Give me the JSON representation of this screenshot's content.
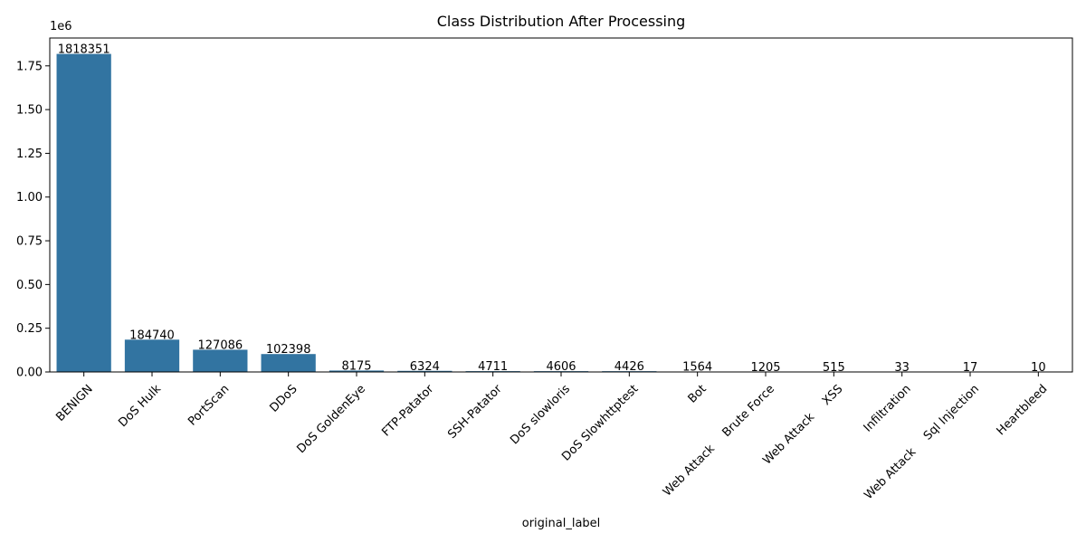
{
  "chart_data": {
    "type": "bar",
    "title": "Class Distribution After Processing",
    "xlabel": "original_label",
    "ylabel": "",
    "offset_text": "1e6",
    "categories": [
      "BENIGN",
      "DoS Hulk",
      "PortScan",
      "DDoS",
      "DoS GoldenEye",
      "FTP-Patator",
      "SSH-Patator",
      "DoS slowloris",
      "DoS Slowhttptest",
      "Bot",
      "Web Attack  Brute Force",
      "Web Attack  XSS",
      "Infiltration",
      "Web Attack  Sql Injection",
      "Heartbleed"
    ],
    "values": [
      1818351,
      184740,
      127086,
      102398,
      8175,
      6324,
      4711,
      4606,
      4426,
      1564,
      1205,
      515,
      33,
      17,
      10
    ],
    "ylim": [
      0,
      1909268.55
    ],
    "yticks": [
      0,
      250000,
      500000,
      750000,
      1000000,
      1250000,
      1500000,
      1750000
    ],
    "ytick_labels": [
      "0.00",
      "0.25",
      "0.50",
      "0.75",
      "1.00",
      "1.25",
      "1.50",
      "1.75"
    ],
    "bar_color": "#3274a1",
    "grid": false,
    "legend": "none"
  }
}
